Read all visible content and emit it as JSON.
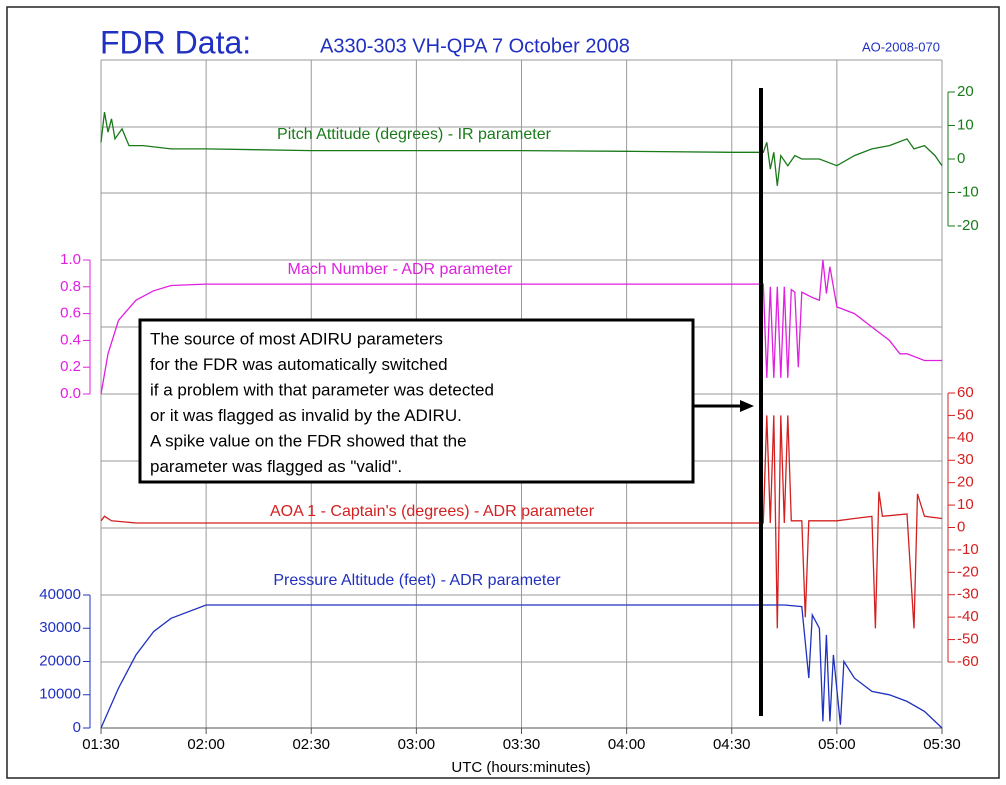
{
  "chart_data": {
    "type": "line",
    "title": "FDR Data:",
    "subtitle": "A330-303 VH-QPA 7 October 2008",
    "report_id": "AO-2008-070",
    "xlabel": "UTC (hours:minutes)",
    "xlim": [
      "01:30",
      "05:30"
    ],
    "xticks": [
      "01:30",
      "02:00",
      "02:30",
      "03:00",
      "03:30",
      "04:00",
      "04:30",
      "05:00",
      "05:30"
    ],
    "grid": true,
    "series": [
      {
        "name": "Pitch Attitude (degrees) - IR parameter",
        "color": "#1a7a1a",
        "axis": "right",
        "ylim": [
          -20,
          20
        ],
        "yticks": [
          -20,
          -10,
          0,
          10,
          20
        ],
        "x": [
          "01:30",
          "01:31",
          "01:32",
          "01:33",
          "01:34",
          "01:36",
          "01:38",
          "01:42",
          "01:50",
          "02:00",
          "02:30",
          "03:00",
          "03:30",
          "04:00",
          "04:30",
          "04:39",
          "04:40",
          "04:41",
          "04:42",
          "04:43",
          "04:44",
          "04:46",
          "04:48",
          "04:50",
          "04:55",
          "05:00",
          "05:05",
          "05:10",
          "05:15",
          "05:20",
          "05:22",
          "05:25",
          "05:28",
          "05:30"
        ],
        "values": [
          5,
          14,
          8,
          12,
          6,
          9,
          4,
          4,
          3,
          3,
          2.5,
          2.5,
          2.5,
          2.3,
          2,
          2,
          5,
          -3,
          2,
          -8,
          1,
          -2,
          1,
          0,
          0,
          -2,
          1,
          3,
          4,
          6,
          3,
          4,
          1,
          -2
        ]
      },
      {
        "name": "Mach Number - ADR parameter",
        "color": "#e020e0",
        "axis": "left",
        "ylim": [
          0,
          1
        ],
        "yticks": [
          {
            "value": 0,
            "label": "0.0"
          },
          0.2,
          0.4,
          0.6,
          0.8,
          {
            "value": 1,
            "label": "1.0"
          }
        ],
        "x": [
          "01:30",
          "01:32",
          "01:35",
          "01:40",
          "01:45",
          "01:50",
          "02:00",
          "03:00",
          "04:00",
          "04:39",
          "04:40",
          "04:41",
          "04:42",
          "04:43",
          "04:44",
          "04:45",
          "04:46",
          "04:47",
          "04:48",
          "04:49",
          "04:50",
          "04:53",
          "04:55",
          "04:56",
          "04:57",
          "04:58",
          "05:00",
          "05:05",
          "05:10",
          "05:15",
          "05:18",
          "05:20",
          "05:25",
          "05:30"
        ],
        "values": [
          0,
          0.3,
          0.55,
          0.7,
          0.77,
          0.81,
          0.82,
          0.82,
          0.82,
          0.82,
          0.12,
          0.8,
          0.12,
          0.8,
          0.12,
          0.8,
          0.12,
          0.78,
          0.76,
          0.2,
          0.76,
          0.72,
          0.7,
          1.0,
          0.75,
          0.95,
          0.65,
          0.6,
          0.5,
          0.4,
          0.3,
          0.3,
          0.25,
          0.25
        ]
      },
      {
        "name": "AOA 1 - Captain's (degrees) - ADR parameter",
        "color": "#d42020",
        "axis": "right",
        "ylim": [
          -60,
          60
        ],
        "yticks": [
          -60,
          -50,
          -40,
          -30,
          -20,
          -10,
          0,
          10,
          20,
          30,
          40,
          50,
          60
        ],
        "x": [
          "01:30",
          "01:31",
          "01:33",
          "01:40",
          "02:00",
          "03:00",
          "04:00",
          "04:39",
          "04:40",
          "04:41",
          "04:42",
          "04:43",
          "04:44",
          "04:45",
          "04:46",
          "04:47",
          "04:50",
          "04:51",
          "04:52",
          "05:00",
          "05:05",
          "05:10",
          "05:11",
          "05:12",
          "05:13",
          "05:20",
          "05:22",
          "05:23",
          "05:25",
          "05:30"
        ],
        "values": [
          3,
          5,
          3,
          2,
          2,
          2,
          2,
          2,
          50,
          2,
          50,
          -45,
          50,
          2,
          50,
          3,
          3,
          -40,
          3,
          3,
          4,
          5,
          -45,
          16,
          5,
          6,
          -45,
          15,
          5,
          4
        ]
      },
      {
        "name": "Pressure Altitude (feet) - ADR parameter",
        "color": "#2030c0",
        "axis": "left",
        "ylim": [
          0,
          40000
        ],
        "yticks": [
          0,
          10000,
          20000,
          30000,
          40000
        ],
        "x": [
          "01:30",
          "01:35",
          "01:40",
          "01:45",
          "01:50",
          "02:00",
          "03:00",
          "04:00",
          "04:45",
          "04:50",
          "04:52",
          "04:53",
          "04:55",
          "04:56",
          "04:57",
          "04:58",
          "04:59",
          "05:01",
          "05:02",
          "05:05",
          "05:10",
          "05:15",
          "05:20",
          "05:25",
          "05:30"
        ],
        "values": [
          0,
          12000,
          22000,
          29000,
          33000,
          37000,
          37000,
          37000,
          37000,
          36500,
          15000,
          34000,
          30000,
          2000,
          28000,
          2000,
          22000,
          1000,
          20000,
          15000,
          11000,
          10000,
          8000,
          5000,
          0
        ]
      }
    ],
    "annotation": [
      "The source of most ADIRU parameters",
      "for the FDR was automatically switched",
      "if a problem with that parameter was detected",
      "or it was flagged as invalid by the ADIRU.",
      "A spike value on the FDR showed that the",
      "parameter was flagged as \"valid\"."
    ]
  }
}
